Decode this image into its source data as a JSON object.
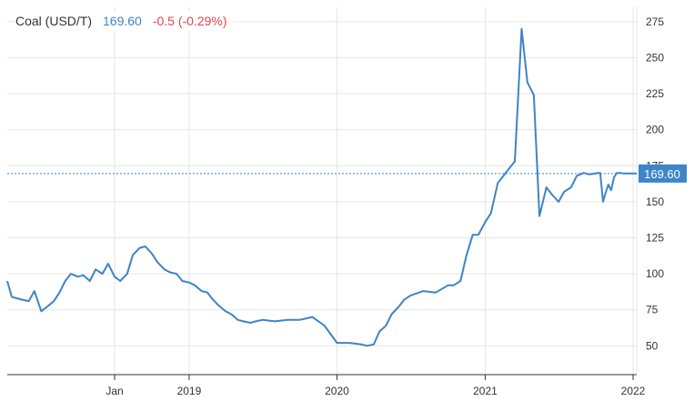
{
  "legend": {
    "name": "Coal (USD/T)",
    "last": "169.60",
    "change": "-0.5 (-0.29%)"
  },
  "colors": {
    "line": "#3d85c6",
    "change_negative": "#e0474c",
    "grid": "#e6e6e6",
    "axis": "#333333"
  },
  "chart_data": {
    "type": "line",
    "title": "Coal (USD/T)",
    "xlabel": "",
    "ylabel": "",
    "x_ticks": [
      "Jan",
      "2019",
      "2020",
      "2021",
      "2022"
    ],
    "y_ticks": [
      50,
      75,
      100,
      125,
      150,
      175,
      200,
      225,
      250,
      275
    ],
    "ylim": [
      30,
      285
    ],
    "xlim": [
      "2017-10-09",
      "2022-01-10"
    ],
    "grid": true,
    "y_axis_position": "right",
    "last_value": 169.6,
    "last_value_label": "169.60",
    "series": [
      {
        "x": [
          "2017-10-09",
          "2017-10-20",
          "2017-11-01",
          "2017-11-15",
          "2017-12-01",
          "2017-12-15",
          "2018-01-01",
          "2018-01-15",
          "2018-02-01",
          "2018-02-15",
          "2018-03-01",
          "2018-03-15",
          "2018-04-01",
          "2018-04-15",
          "2018-05-01",
          "2018-05-15",
          "2018-06-01",
          "2018-06-15",
          "2018-07-01",
          "2018-07-15",
          "2018-08-01",
          "2018-08-15",
          "2018-09-01",
          "2018-09-15",
          "2018-10-01",
          "2018-10-15",
          "2018-11-01",
          "2018-11-15",
          "2018-12-01",
          "2018-12-15",
          "2019-01-01",
          "2019-01-15",
          "2019-02-01",
          "2019-02-15",
          "2019-03-01",
          "2019-03-15",
          "2019-04-01",
          "2019-04-15",
          "2019-05-01",
          "2019-05-15",
          "2019-06-01",
          "2019-06-15",
          "2019-07-01",
          "2019-08-01",
          "2019-09-01",
          "2019-10-01",
          "2019-11-01",
          "2019-12-01",
          "2020-01-01",
          "2020-02-01",
          "2020-03-01",
          "2020-03-15",
          "2020-04-01",
          "2020-04-15",
          "2020-05-01",
          "2020-05-15",
          "2020-06-01",
          "2020-06-15",
          "2020-07-01",
          "2020-08-01",
          "2020-09-01",
          "2020-10-01",
          "2020-10-15",
          "2020-11-01",
          "2020-11-15",
          "2020-12-01",
          "2020-12-15",
          "2021-01-01",
          "2021-01-15",
          "2021-02-01",
          "2021-02-15",
          "2021-03-01",
          "2021-03-15",
          "2021-04-01",
          "2021-04-15",
          "2021-05-01",
          "2021-05-15",
          "2021-06-01",
          "2021-06-15",
          "2021-07-01",
          "2021-07-15",
          "2021-08-01",
          "2021-08-15",
          "2021-09-01",
          "2021-09-15",
          "2021-10-01",
          "2021-10-05",
          "2021-10-12",
          "2021-10-19",
          "2021-10-26",
          "2021-11-01",
          "2021-11-08",
          "2021-11-15",
          "2021-11-22",
          "2021-12-01",
          "2021-12-08",
          "2021-12-15",
          "2021-12-22",
          "2022-01-01",
          "2022-01-10"
        ],
        "values": [
          95,
          84,
          83,
          82,
          81,
          88,
          74,
          77,
          81,
          87,
          95,
          100,
          98,
          99,
          95,
          103,
          100,
          107,
          98,
          95,
          100,
          113,
          118,
          119,
          114,
          108,
          103,
          101,
          100,
          95,
          94,
          92,
          88,
          87,
          82,
          78,
          74,
          72,
          68,
          67,
          66,
          67,
          68,
          67,
          68,
          68,
          70,
          64,
          52,
          52,
          51,
          50,
          51,
          60,
          64,
          72,
          77,
          82,
          85,
          88,
          87,
          92,
          92,
          95,
          112,
          127,
          127,
          136,
          142,
          163,
          168,
          173,
          178,
          270,
          233,
          224,
          140,
          160,
          155,
          150,
          157,
          160,
          168,
          170,
          169,
          169.6,
          170,
          170,
          150,
          157,
          162,
          158,
          167,
          170,
          170,
          169.6,
          169.6,
          169.6,
          169.6,
          169.6
        ]
      }
    ]
  }
}
